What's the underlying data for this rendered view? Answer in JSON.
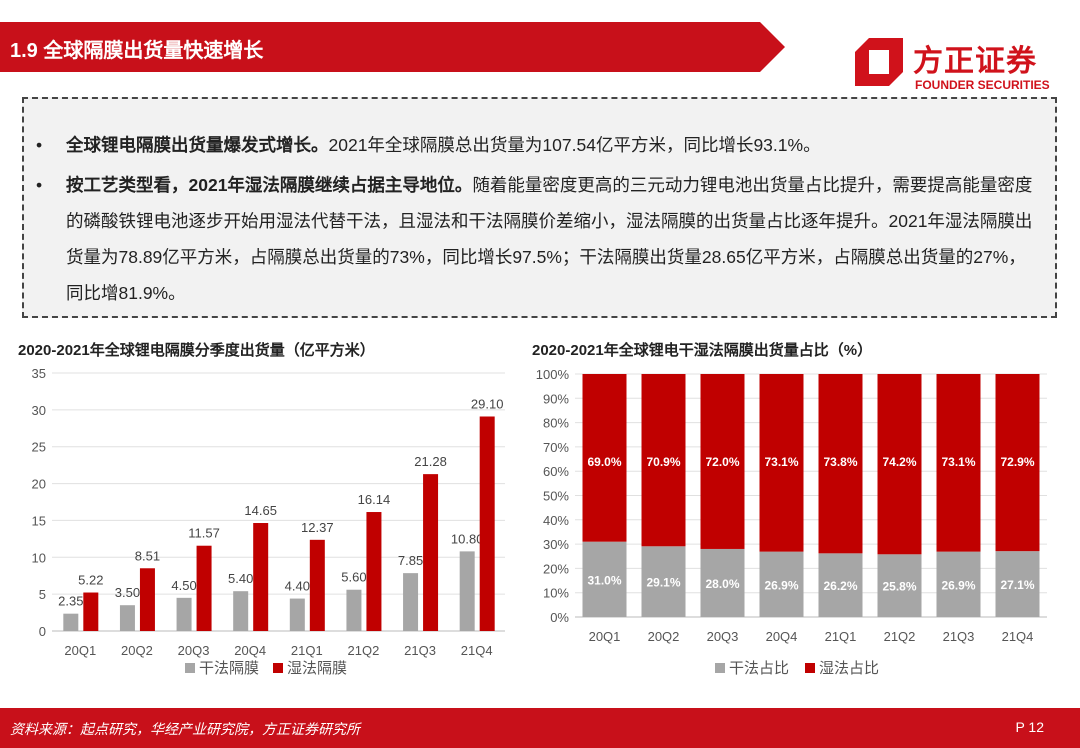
{
  "header": {
    "title": "1.9 全球隔膜出货量快速增长",
    "logo_cn": "方正证券",
    "logo_en": "FOUNDER SECURITIES"
  },
  "bullets": [
    {
      "bold": "全球锂电隔膜出货量爆发式增长。",
      "text": "2021年全球隔膜总出货量为107.54亿平方米，同比增长93.1%。"
    },
    {
      "bold": "按工艺类型看，2021年湿法隔膜继续占据主导地位。",
      "text": "随着能量密度更高的三元动力锂电池出货量占比提升，需要提高能量密度的磷酸铁锂电池逐步开始用湿法代替干法，且湿法和干法隔膜价差缩小，湿法隔膜的出货量占比逐年提升。2021年湿法隔膜出货量为78.89亿平方米，占隔膜总出货量的73%，同比增长97.5%；干法隔膜出货量28.65亿平方米，占隔膜总出货量的27%，同比增81.9%。"
    }
  ],
  "bullet_symbol": "•",
  "colors": {
    "dry": "#a6a6a6",
    "wet": "#c00000",
    "brand": "#d0121b"
  },
  "chart_data": [
    {
      "type": "bar",
      "title": "2020-2021年全球锂电隔膜分季度出货量（亿平方米）",
      "categories": [
        "20Q1",
        "20Q2",
        "20Q3",
        "20Q4",
        "21Q1",
        "21Q2",
        "21Q3",
        "21Q4"
      ],
      "series": [
        {
          "name": "干法隔膜",
          "values": [
            2.35,
            3.5,
            4.5,
            5.4,
            4.4,
            5.6,
            7.85,
            10.8
          ],
          "labels": [
            "2.35",
            "3.50",
            "4.50",
            "5.40",
            "4.40",
            "5.60",
            "7.85",
            "10.80"
          ]
        },
        {
          "name": "湿法隔膜",
          "values": [
            5.22,
            8.51,
            11.57,
            14.65,
            12.37,
            16.14,
            21.28,
            29.1
          ],
          "labels": [
            "5.22",
            "8.51",
            "11.57",
            "14.65",
            "12.37",
            "16.14",
            "21.28",
            "29.10"
          ]
        }
      ],
      "ylim": [
        0,
        35
      ],
      "yticks": [
        "0",
        "5",
        "10",
        "15",
        "20",
        "25",
        "30",
        "35"
      ],
      "grid": true,
      "legend": "bottom"
    },
    {
      "type": "bar",
      "stacked": true,
      "title": "2020-2021年全球锂电干湿法隔膜出货量占比（%）",
      "categories": [
        "20Q1",
        "20Q2",
        "20Q3",
        "20Q4",
        "21Q1",
        "21Q2",
        "21Q3",
        "21Q4"
      ],
      "series": [
        {
          "name": "干法占比",
          "values": [
            31.0,
            29.1,
            28.0,
            26.9,
            26.2,
            25.8,
            26.9,
            27.1
          ],
          "labels": [
            "31.0%",
            "29.1%",
            "28.0%",
            "26.9%",
            "26.2%",
            "25.8%",
            "26.9%",
            "27.1%"
          ]
        },
        {
          "name": "湿法占比",
          "values": [
            69.0,
            70.9,
            72.0,
            73.1,
            73.8,
            74.2,
            73.1,
            72.9
          ],
          "labels": [
            "69.0%",
            "70.9%",
            "72.0%",
            "73.1%",
            "73.8%",
            "74.2%",
            "73.1%",
            "72.9%"
          ]
        }
      ],
      "ylim": [
        0,
        100
      ],
      "yticks": [
        "0%",
        "10%",
        "20%",
        "30%",
        "40%",
        "50%",
        "60%",
        "70%",
        "80%",
        "90%",
        "100%"
      ],
      "grid": true,
      "legend": "bottom"
    }
  ],
  "footer": {
    "source": "资料来源：起点研究，华经产业研究院，方正证券研究所",
    "page": "P 12"
  }
}
